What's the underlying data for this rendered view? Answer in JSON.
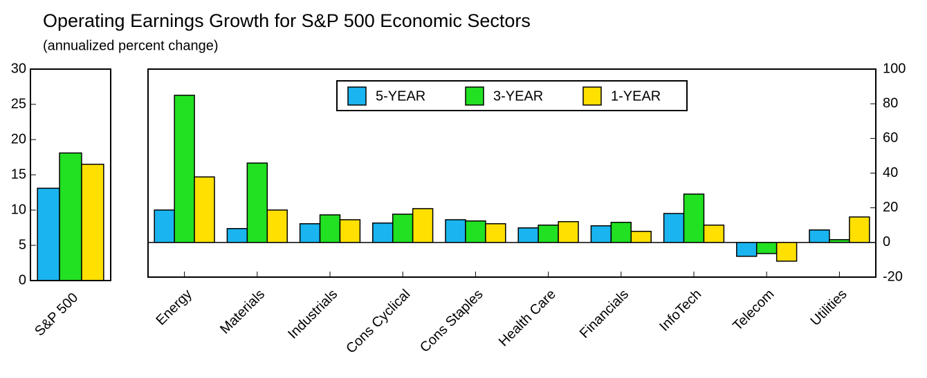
{
  "chart_data": [
    {
      "type": "bar",
      "title": "Operating Earnings Growth for S&P 500 Economic Sectors",
      "subtitle": "(annualized percent change)",
      "categories": [
        "S&P 500"
      ],
      "series": [
        {
          "color": "#1ab4f0",
          "values": [
            13.1
          ]
        },
        {
          "color": "#22e022",
          "values": [
            18.1
          ]
        },
        {
          "color": "#ffe000",
          "values": [
            16.5
          ]
        }
      ],
      "ylim": [
        0,
        30
      ],
      "yticks": [
        0,
        5,
        10,
        15,
        20,
        25,
        30
      ],
      "y_axis_position": "left",
      "grid": false
    },
    {
      "type": "bar",
      "categories": [
        "Energy",
        "Materials",
        "Industrials",
        "Cons Cyclical",
        "Cons Staples",
        "Health Care",
        "Financials",
        "InfoTech",
        "Telecom",
        "Utilities"
      ],
      "series": [
        {
          "name": "5-YEAR",
          "color": "#1ab4f0",
          "values": [
            18.7,
            8,
            10.8,
            11.2,
            13.1,
            8.4,
            9.6,
            16.7,
            -8,
            7.2
          ]
        },
        {
          "name": "3-YEAR",
          "color": "#22e022",
          "values": [
            84.9,
            45.8,
            15.9,
            16.3,
            12.4,
            10,
            11.6,
            27.9,
            -6.4,
            1.6
          ]
        },
        {
          "name": "1-YEAR",
          "color": "#ffe000",
          "values": [
            37.8,
            18.7,
            13.1,
            19.5,
            10.8,
            12,
            6.4,
            10,
            -10.8,
            14.7
          ]
        }
      ],
      "ylim": [
        -20,
        100
      ],
      "yticks": [
        -20,
        0,
        20,
        40,
        60,
        80,
        100
      ],
      "y_axis_position": "right",
      "legend": "top",
      "grid": false
    }
  ]
}
